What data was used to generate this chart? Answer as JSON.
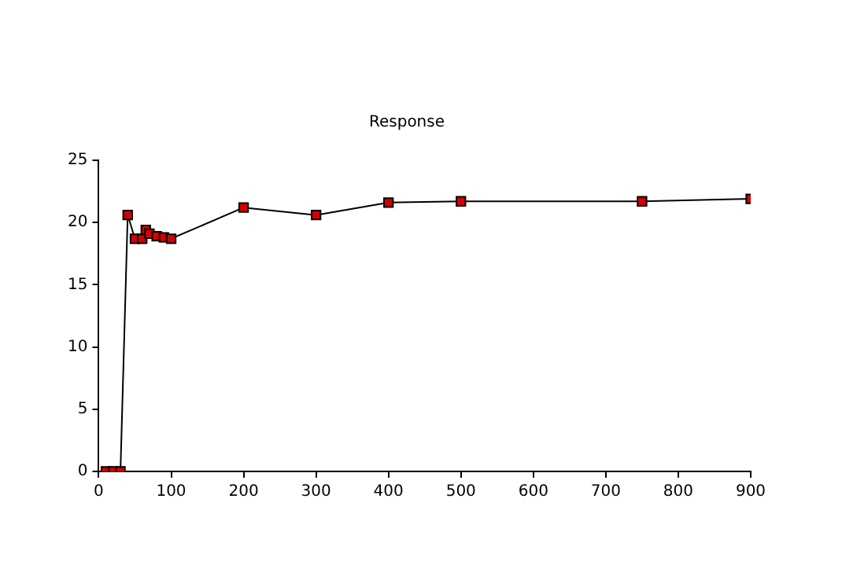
{
  "chart_data": {
    "type": "line",
    "title": "Response",
    "x": [
      10,
      20,
      30,
      40,
      50,
      60,
      65,
      70,
      80,
      90,
      100,
      200,
      300,
      400,
      500,
      750,
      900
    ],
    "series": [
      {
        "color": "#d40000",
        "values": [
          0,
          0,
          0,
          20.6,
          18.7,
          18.7,
          19.4,
          19.1,
          18.9,
          18.8,
          18.7,
          21.2,
          20.6,
          21.6,
          21.7,
          21.7,
          21.9
        ]
      }
    ],
    "xlim": [
      0,
      900
    ],
    "xticks": [
      0,
      100,
      200,
      300,
      400,
      500,
      600,
      700,
      800,
      900
    ],
    "ylim": [
      0,
      25
    ],
    "yticks": [
      0,
      5,
      10,
      15,
      20,
      25
    ],
    "grid": false,
    "legend": false,
    "marker": "square",
    "line_style": "solid"
  }
}
